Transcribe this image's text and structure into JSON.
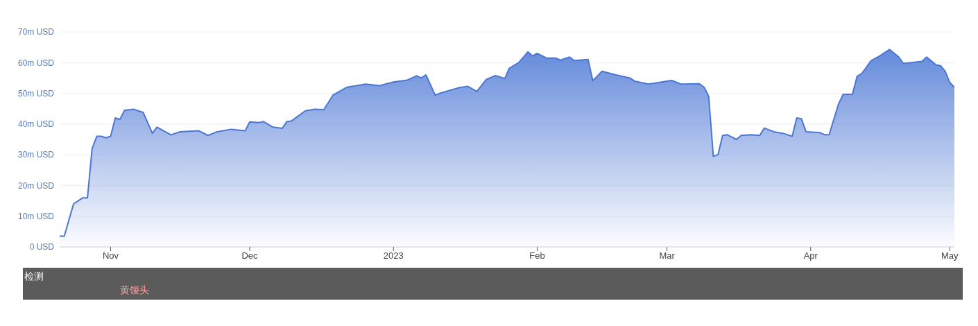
{
  "chart_data": {
    "type": "area",
    "grid": "y",
    "marker": "none",
    "line_style": "solid",
    "xlim": [
      "2022-10-21",
      "2023-05-02"
    ],
    "xticks": [
      {
        "value": "2022-11-01",
        "label": "Nov"
      },
      {
        "value": "2022-12-01",
        "label": "Dec"
      },
      {
        "value": "2023-01-01",
        "label": "2023"
      },
      {
        "value": "2023-02-01",
        "label": "Feb"
      },
      {
        "value": "2023-03-01",
        "label": "Mar"
      },
      {
        "value": "2023-04-01",
        "label": "Apr"
      },
      {
        "value": "2023-05-01",
        "label": "May"
      }
    ],
    "ylim": [
      0,
      70
    ],
    "yticks": [
      {
        "value": 0,
        "label": "0 USD"
      },
      {
        "value": 10,
        "label": "10m USD"
      },
      {
        "value": 20,
        "label": "20m USD"
      },
      {
        "value": 30,
        "label": "30m USD"
      },
      {
        "value": 40,
        "label": "40m USD"
      },
      {
        "value": 50,
        "label": "50m USD"
      },
      {
        "value": 60,
        "label": "60m USD"
      },
      {
        "value": 70,
        "label": "70m USD"
      }
    ],
    "x": [
      "2022-10-21",
      "2022-10-22",
      "2022-10-24",
      "2022-10-26",
      "2022-10-27",
      "2022-10-28",
      "2022-10-29",
      "2022-10-30",
      "2022-10-31",
      "2022-11-01",
      "2022-11-02",
      "2022-11-03",
      "2022-11-04",
      "2022-11-06",
      "2022-11-08",
      "2022-11-10",
      "2022-11-11",
      "2022-11-14",
      "2022-11-16",
      "2022-11-20",
      "2022-11-22",
      "2022-11-24",
      "2022-11-27",
      "2022-11-30",
      "2022-12-01",
      "2022-12-03",
      "2022-12-04",
      "2022-12-06",
      "2022-12-08",
      "2022-12-09",
      "2022-12-10",
      "2022-12-13",
      "2022-12-15",
      "2022-12-17",
      "2022-12-19",
      "2022-12-22",
      "2022-12-26",
      "2022-12-29",
      "2023-01-01",
      "2023-01-04",
      "2023-01-06",
      "2023-01-07",
      "2023-01-08",
      "2023-01-10",
      "2023-01-11",
      "2023-01-15",
      "2023-01-17",
      "2023-01-19",
      "2023-01-21",
      "2023-01-23",
      "2023-01-25",
      "2023-01-26",
      "2023-01-28",
      "2023-01-30",
      "2023-01-31",
      "2023-02-01",
      "2023-02-03",
      "2023-02-05",
      "2023-02-06",
      "2023-02-08",
      "2023-02-09",
      "2023-02-12",
      "2023-02-13",
      "2023-02-15",
      "2023-02-18",
      "2023-02-21",
      "2023-02-22",
      "2023-02-25",
      "2023-03-02",
      "2023-03-04",
      "2023-03-08",
      "2023-03-09",
      "2023-03-10",
      "2023-03-11",
      "2023-03-12",
      "2023-03-13",
      "2023-03-14",
      "2023-03-16",
      "2023-03-17",
      "2023-03-19",
      "2023-03-21",
      "2023-03-22",
      "2023-03-24",
      "2023-03-26",
      "2023-03-28",
      "2023-03-29",
      "2023-03-30",
      "2023-03-31",
      "2023-04-03",
      "2023-04-04",
      "2023-04-05",
      "2023-04-07",
      "2023-04-08",
      "2023-04-10",
      "2023-04-11",
      "2023-04-12",
      "2023-04-14",
      "2023-04-16",
      "2023-04-18",
      "2023-04-20",
      "2023-04-21",
      "2023-04-25",
      "2023-04-26",
      "2023-04-28",
      "2023-04-29",
      "2023-04-30",
      "2023-05-01",
      "2023-05-02"
    ],
    "series": [
      {
        "color": "#4a76d4",
        "values": [
          3.5,
          3.5,
          14,
          16,
          16,
          32,
          36,
          36,
          35.5,
          36,
          42,
          41.5,
          44.5,
          44.8,
          43.8,
          37,
          39,
          36.5,
          37.5,
          37.8,
          36.3,
          37.5,
          38.3,
          37.8,
          40.7,
          40.5,
          40.8,
          39,
          38.6,
          40.8,
          41,
          44.3,
          44.8,
          44.7,
          49.5,
          52,
          53,
          52.5,
          53.7,
          54.3,
          55.7,
          55,
          56,
          49.4,
          50,
          51.8,
          52.3,
          50.6,
          54.5,
          55.8,
          54.8,
          58.2,
          60,
          63.5,
          62.2,
          63,
          61.5,
          61.5,
          60.8,
          61.8,
          60.7,
          61,
          54.1,
          57.2,
          56,
          55,
          54,
          53,
          54.2,
          53,
          53.1,
          52,
          49,
          29.5,
          30,
          36.3,
          36.5,
          35,
          36.3,
          36.5,
          36.3,
          38.7,
          37.5,
          37,
          36,
          42,
          41.7,
          37.5,
          37.2,
          36.5,
          36.6,
          46.5,
          49.7,
          49.7,
          55.5,
          56.4,
          60.6,
          62.3,
          64.3,
          61.8,
          59.7,
          60.4,
          61.8,
          59.3,
          59,
          57.2,
          53.5,
          52
        ]
      }
    ],
    "annotations": [
      "检测",
      "黄馒头"
    ]
  }
}
